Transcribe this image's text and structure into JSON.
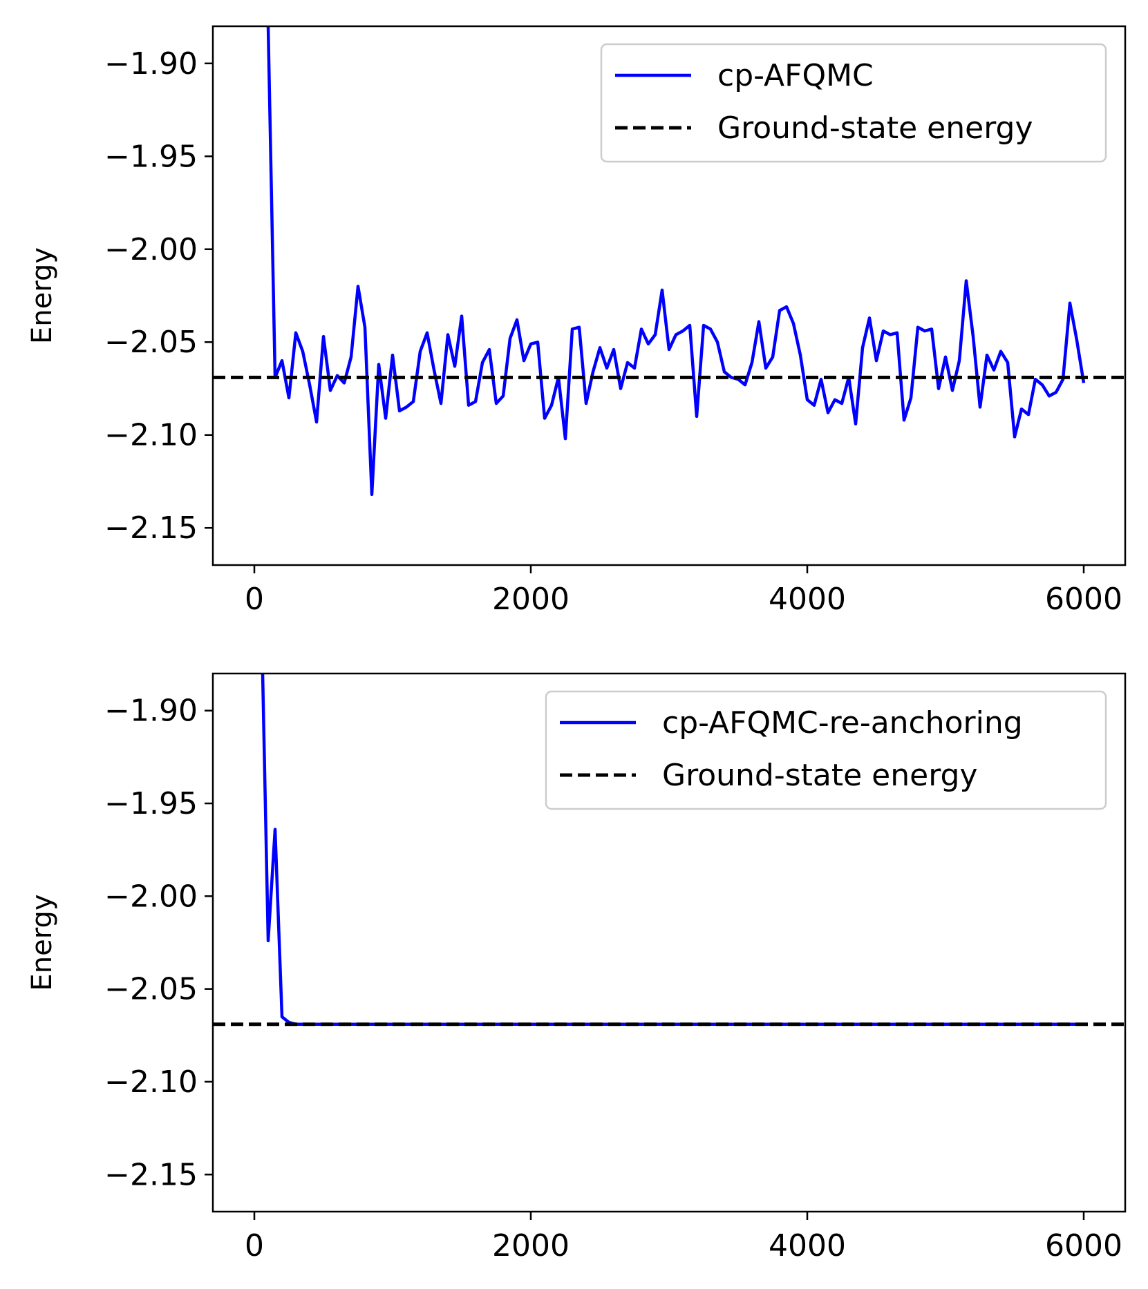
{
  "chart_data": [
    {
      "type": "line",
      "title": "",
      "xlabel": "",
      "ylabel": "Energy",
      "xlim": [
        -300,
        6300
      ],
      "ylim": [
        -2.17,
        -1.88
      ],
      "xticks": [
        0,
        2000,
        4000,
        6000
      ],
      "xtick_labels": [
        "0",
        "2000",
        "4000",
        "6000"
      ],
      "yticks": [
        -1.9,
        -1.95,
        -2.0,
        -2.05,
        -2.1,
        -2.15
      ],
      "ytick_labels": [
        "−1.90",
        "−1.95",
        "−2.00",
        "−2.05",
        "−2.10",
        "−2.15"
      ],
      "grid": false,
      "legend_position": "upper right",
      "reference_line": {
        "name": "Ground-state energy",
        "y": -2.069,
        "style": "dashed",
        "color": "#000000"
      },
      "series": [
        {
          "name": "cp-AFQMC",
          "color": "#0000ff",
          "style": "solid",
          "x": [
            100,
            150,
            200,
            250,
            300,
            350,
            400,
            450,
            500,
            550,
            600,
            650,
            700,
            750,
            800,
            850,
            900,
            950,
            1000,
            1050,
            1100,
            1150,
            1200,
            1250,
            1300,
            1350,
            1400,
            1450,
            1500,
            1550,
            1600,
            1650,
            1700,
            1750,
            1800,
            1850,
            1900,
            1950,
            2000,
            2050,
            2100,
            2150,
            2200,
            2250,
            2300,
            2350,
            2400,
            2450,
            2500,
            2550,
            2600,
            2650,
            2700,
            2750,
            2800,
            2850,
            2900,
            2950,
            3000,
            3050,
            3100,
            3150,
            3200,
            3250,
            3300,
            3350,
            3400,
            3450,
            3500,
            3550,
            3600,
            3650,
            3700,
            3750,
            3800,
            3850,
            3900,
            3950,
            4000,
            4050,
            4100,
            4150,
            4200,
            4250,
            4300,
            4350,
            4400,
            4450,
            4500,
            4550,
            4600,
            4650,
            4700,
            4750,
            4800,
            4850,
            4900,
            4950,
            5000,
            5050,
            5100,
            5150,
            5200,
            5250,
            5300,
            5350,
            5400,
            5450,
            5500,
            5550,
            5600,
            5650,
            5700,
            5750,
            5800,
            5850,
            5900,
            5950,
            6000
          ],
          "y": [
            -1.88,
            -2.069,
            -2.06,
            -2.08,
            -2.045,
            -2.055,
            -2.073,
            -2.093,
            -2.047,
            -2.076,
            -2.068,
            -2.072,
            -2.058,
            -2.02,
            -2.042,
            -2.132,
            -2.062,
            -2.091,
            -2.057,
            -2.087,
            -2.085,
            -2.082,
            -2.055,
            -2.045,
            -2.065,
            -2.083,
            -2.046,
            -2.063,
            -2.036,
            -2.084,
            -2.082,
            -2.061,
            -2.054,
            -2.083,
            -2.079,
            -2.048,
            -2.038,
            -2.06,
            -2.051,
            -2.05,
            -2.091,
            -2.084,
            -2.069,
            -2.102,
            -2.043,
            -2.042,
            -2.083,
            -2.066,
            -2.053,
            -2.064,
            -2.054,
            -2.075,
            -2.061,
            -2.064,
            -2.043,
            -2.051,
            -2.046,
            -2.022,
            -2.054,
            -2.046,
            -2.044,
            -2.041,
            -2.09,
            -2.041,
            -2.043,
            -2.05,
            -2.066,
            -2.069,
            -2.07,
            -2.073,
            -2.061,
            -2.039,
            -2.064,
            -2.058,
            -2.033,
            -2.031,
            -2.04,
            -2.057,
            -2.081,
            -2.084,
            -2.07,
            -2.088,
            -2.081,
            -2.083,
            -2.069,
            -2.094,
            -2.053,
            -2.037,
            -2.06,
            -2.044,
            -2.046,
            -2.045,
            -2.092,
            -2.08,
            -2.042,
            -2.044,
            -2.043,
            -2.075,
            -2.058,
            -2.076,
            -2.06,
            -2.017,
            -2.047,
            -2.085,
            -2.057,
            -2.065,
            -2.055,
            -2.061,
            -2.101,
            -2.086,
            -2.089,
            -2.07,
            -2.073,
            -2.079,
            -2.077,
            -2.07,
            -2.029,
            -2.049,
            -2.072
          ]
        },
        {
          "name": "Ground-state energy",
          "color": "#000000",
          "style": "dashed",
          "x": [
            -300,
            6300
          ],
          "y": [
            -2.069,
            -2.069
          ]
        }
      ]
    },
    {
      "type": "line",
      "title": "",
      "xlabel": "",
      "ylabel": "Energy",
      "xlim": [
        -300,
        6300
      ],
      "ylim": [
        -2.17,
        -1.88
      ],
      "xticks": [
        0,
        2000,
        4000,
        6000
      ],
      "xtick_labels": [
        "0",
        "2000",
        "4000",
        "6000"
      ],
      "yticks": [
        -1.9,
        -1.95,
        -2.0,
        -2.05,
        -2.1,
        -2.15
      ],
      "ytick_labels": [
        "−1.90",
        "−1.95",
        "−2.00",
        "−2.05",
        "−2.10",
        "−2.15"
      ],
      "grid": false,
      "legend_position": "upper right",
      "reference_line": {
        "name": "Ground-state energy",
        "y": -2.069,
        "style": "dashed",
        "color": "#000000"
      },
      "series": [
        {
          "name": "cp-AFQMC-re-anchoring",
          "color": "#0000ff",
          "style": "solid",
          "x": [
            60,
            100,
            150,
            200,
            250,
            300,
            400,
            500,
            1000,
            2000,
            3000,
            4000,
            5000,
            6000
          ],
          "y": [
            -1.88,
            -2.024,
            -1.964,
            -2.065,
            -2.068,
            -2.069,
            -2.069,
            -2.069,
            -2.069,
            -2.069,
            -2.069,
            -2.069,
            -2.069,
            -2.069
          ]
        },
        {
          "name": "Ground-state energy",
          "color": "#000000",
          "style": "dashed",
          "x": [
            -300,
            6300
          ],
          "y": [
            -2.069,
            -2.069
          ]
        }
      ]
    }
  ]
}
